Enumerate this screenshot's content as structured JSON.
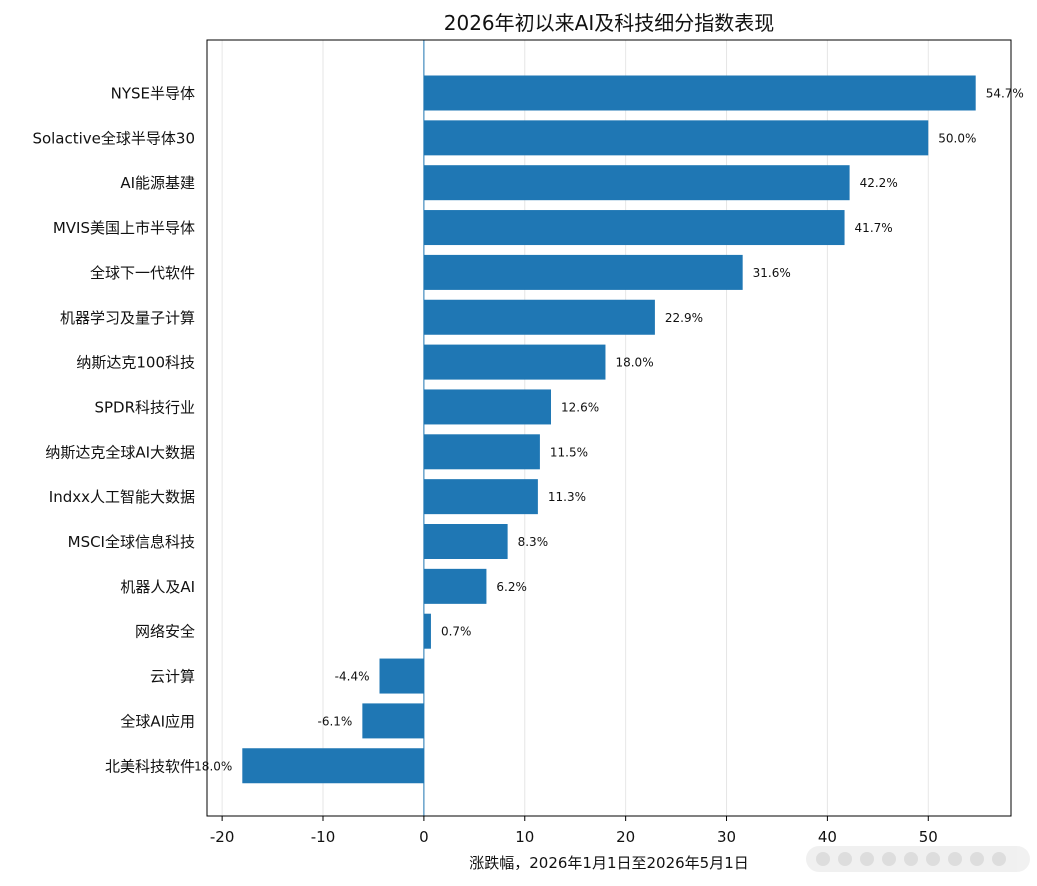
{
  "chart_data": {
    "type": "bar",
    "orientation": "horizontal",
    "title": "2026年初以来AI及科技细分指数表现",
    "xlabel": "涨跌幅，2026年1月1日至2026年5月1日",
    "ylabel": "",
    "xlim": [
      -21.5,
      58.2
    ],
    "xticks": [
      -20,
      -10,
      0,
      10,
      20,
      30,
      40,
      50
    ],
    "xtick_labels": [
      "-20",
      "-10",
      "0",
      "10",
      "20",
      "30",
      "40",
      "50"
    ],
    "grid": "vertical",
    "bar_color": "#1f77b4",
    "zero_line_color": "#1f77b4",
    "categories": [
      "NYSE半导体",
      "Solactive全球半导体30",
      "AI能源基建",
      "MVIS美国上市半导体",
      "全球下一代软件",
      "机器学习及量子计算",
      "纳斯达克100科技",
      "SPDR科技行业",
      "纳斯达克全球AI大数据",
      "Indxx人工智能大数据",
      "MSCI全球信息科技",
      "机器人及AI",
      "网络安全",
      "云计算",
      "全球AI应用",
      "北美科技软件"
    ],
    "values": [
      54.7,
      50.0,
      42.2,
      41.7,
      31.6,
      22.9,
      18.0,
      12.6,
      11.5,
      11.3,
      8.3,
      6.2,
      0.7,
      -4.4,
      -6.1,
      -18.0
    ],
    "value_labels": [
      "54.7%",
      "50.0%",
      "42.2%",
      "41.7%",
      "31.6%",
      "22.9%",
      "18.0%",
      "12.6%",
      "11.5%",
      "11.3%",
      "8.3%",
      "6.2%",
      "0.7%",
      "-4.4%",
      "-6.1%",
      "-18.0%"
    ]
  }
}
